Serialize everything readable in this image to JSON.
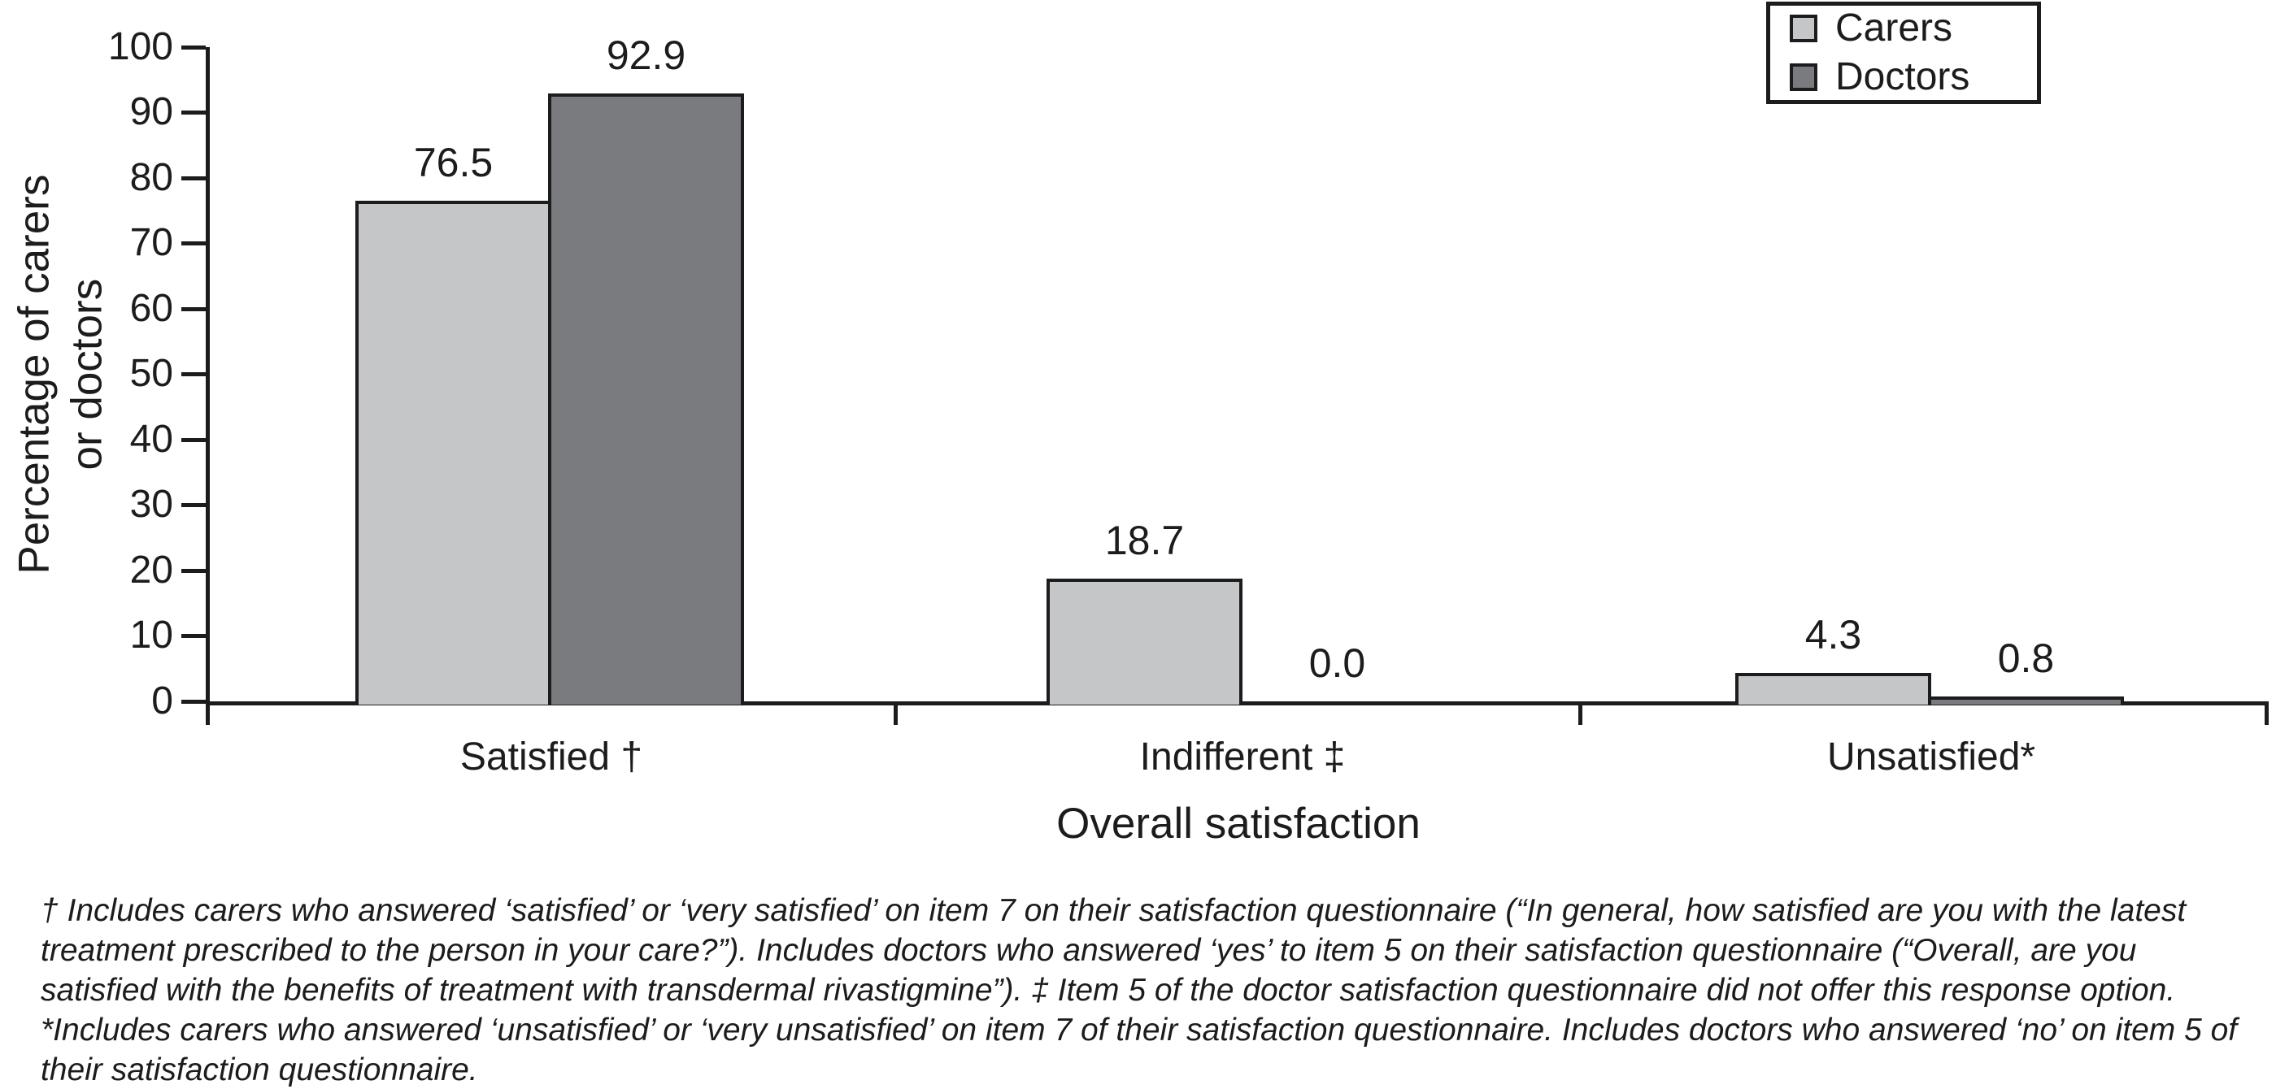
{
  "chart_data": {
    "type": "bar",
    "title": "",
    "xlabel": "Overall satisfaction",
    "ylabel": "Percentage of carers or doctors",
    "ylabel_lines": [
      "Percentage of carers",
      "or doctors"
    ],
    "categories": [
      "Satisfied †",
      "Indifferent ‡",
      "Unsatisfied*"
    ],
    "series": [
      {
        "name": "Carers",
        "color": "#c5c6c8",
        "values": [
          76.5,
          18.7,
          4.3
        ]
      },
      {
        "name": "Doctors",
        "color": "#7a7b7f",
        "values": [
          92.9,
          0.0,
          0.8
        ]
      }
    ],
    "ylim": [
      0,
      100
    ],
    "yticks": [
      0,
      10,
      20,
      30,
      40,
      50,
      60,
      70,
      80,
      90,
      100
    ],
    "grid": false,
    "legend_position": "top-right",
    "value_label_format": "one-decimal",
    "bar_edge_color": "#1c1c1e"
  },
  "footnote": "† Includes carers who answered ‘satisfied’ or ‘very satisfied’ on item 7 on their satisfaction questionnaire (“In general, how satisfied are you with the latest treatment prescribed to the person in your care?”). Includes doctors who answered ‘yes’ to item 5 on their satisfaction questionnaire (“Overall, are you satisfied with the benefits of treatment with transdermal rivastigmine”). ‡ Item 5 of the doctor satisfaction questionnaire did not offer this response option. *Includes carers who answered ‘unsatisfied’ or ‘very unsatisfied’ on item 7 of their satisfaction questionnaire. Includes doctors who answered ‘no’ on item 5 of their satisfaction questionnaire."
}
